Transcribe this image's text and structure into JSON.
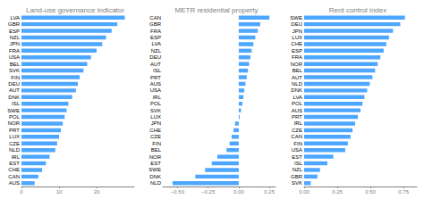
{
  "chart_data": [
    {
      "type": "bar",
      "orientation": "horizontal",
      "title": "Land-use governance indicator",
      "categories": [
        "LVA",
        "GBR",
        "ESP",
        "NZL",
        "JPN",
        "FRA",
        "USA",
        "BEL",
        "SVK",
        "FIN",
        "DEU",
        "AUT",
        "DNK",
        "ISL",
        "SWE",
        "POL",
        "NOR",
        "PRT",
        "LUX",
        "CZE",
        "NLD",
        "IRL",
        "EST",
        "CHE",
        "CAN",
        "AUS"
      ],
      "values": [
        27.5,
        25.5,
        24.0,
        22.5,
        21.5,
        20.0,
        18.5,
        17.5,
        16.5,
        15.5,
        15.0,
        14.5,
        13.5,
        12.5,
        12.0,
        11.5,
        11.0,
        10.5,
        10.0,
        9.5,
        9.0,
        7.5,
        6.5,
        5.5,
        4.5,
        3.5
      ],
      "color": "#4da6ff",
      "xlim": [
        0,
        30
      ],
      "xticks": [
        0,
        10,
        20
      ],
      "grid": false
    },
    {
      "type": "bar",
      "orientation": "horizontal",
      "title": "METR residential property",
      "categories": [
        "CAN",
        "GBR",
        "FRA",
        "ESP",
        "LVA",
        "NZL",
        "DEU",
        "AUT",
        "ISL",
        "PRT",
        "AUS",
        "USA",
        "IRL",
        "POL",
        "SVK",
        "LUX",
        "JPN",
        "CHE",
        "CZE",
        "FIN",
        "BEL",
        "NOR",
        "EST",
        "SWE",
        "DNK",
        "NLD"
      ],
      "values": [
        0.25,
        0.175,
        0.155,
        0.135,
        0.12,
        0.105,
        0.095,
        0.085,
        0.075,
        0.065,
        0.055,
        0.045,
        0.038,
        0.03,
        0.018,
        0.008,
        -0.03,
        -0.043,
        -0.058,
        -0.075,
        -0.1,
        -0.175,
        -0.22,
        -0.275,
        -0.355,
        -0.54
      ],
      "color": "#4da6ff",
      "xlim": [
        -0.62,
        0.3
      ],
      "xticks": [
        {
          "value": -0.5,
          "label": "−0.50"
        },
        {
          "value": -0.25,
          "label": "−0.25"
        },
        {
          "value": 0,
          "label": "0.00"
        },
        0.25
      ],
      "grid": false
    },
    {
      "type": "bar",
      "orientation": "horizontal",
      "title": "Rent control index",
      "categories": [
        "SWE",
        "DEU",
        "JPN",
        "LUX",
        "CHE",
        "ESP",
        "FRA",
        "NOR",
        "BEL",
        "AUT",
        "NLD",
        "DNK",
        "LVA",
        "POL",
        "AUS",
        "PRT",
        "IRL",
        "CZE",
        "CAN",
        "FIN",
        "USA",
        "EST",
        "ISL",
        "NZL",
        "GBR",
        "SVK"
      ],
      "values": [
        0.76,
        0.725,
        0.67,
        0.64,
        0.62,
        0.6,
        0.575,
        0.555,
        0.535,
        0.515,
        0.495,
        0.475,
        0.455,
        0.44,
        0.425,
        0.405,
        0.385,
        0.365,
        0.35,
        0.33,
        0.31,
        0.22,
        0.175,
        0.12,
        0.1,
        0.05
      ],
      "color": "#4da6ff",
      "xlim": [
        0,
        0.85
      ],
      "xticks": [
        {
          "value": 0,
          "label": "0.00"
        },
        0.25,
        {
          "value": 0.5,
          "label": "0.50"
        },
        0.75
      ],
      "grid": false
    }
  ]
}
